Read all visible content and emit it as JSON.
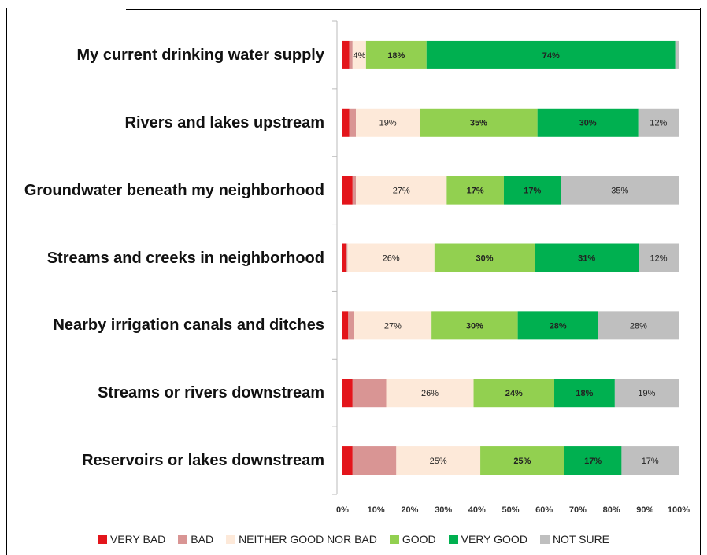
{
  "chart_data": {
    "type": "stacked-bar-100",
    "categories": [
      "My current drinking water supply",
      "Rivers and lakes upstream",
      "Groundwater beneath my neighborhood",
      "Streams and creeks in neighborhood",
      "Nearby irrigation canals and ditches",
      "Streams or rivers downstream",
      "Reservoirs or lakes downstream"
    ],
    "series": [
      {
        "name": "VERY BAD",
        "color": "#e3151b",
        "values": [
          2,
          2,
          3,
          1,
          2,
          3,
          3
        ],
        "value_labels": [
          null,
          null,
          null,
          null,
          null,
          null,
          null
        ]
      },
      {
        "name": "BAD",
        "color": "#d99594",
        "values": [
          1,
          2,
          1,
          0.5,
          2,
          10,
          13
        ],
        "value_labels": [
          null,
          null,
          null,
          null,
          null,
          null,
          null
        ]
      },
      {
        "name": "NEITHER GOOD NOR BAD",
        "color": "#fde9d9",
        "values": [
          4,
          19,
          27,
          26,
          27,
          26,
          25
        ],
        "value_labels": [
          "4%",
          "19%",
          "27%",
          "26%",
          "27%",
          "26%",
          "25%"
        ]
      },
      {
        "name": "GOOD",
        "color": "#92d050",
        "values": [
          18,
          35,
          17,
          30,
          30,
          24,
          25
        ],
        "value_labels": [
          "18%",
          "35%",
          "17%",
          "30%",
          "30%",
          "24%",
          "25%"
        ]
      },
      {
        "name": "VERY GOOD",
        "color": "#00b050",
        "values": [
          74,
          30,
          17,
          31,
          28,
          18,
          17
        ],
        "value_labels": [
          "74%",
          "30%",
          "17%",
          "31%",
          "28%",
          "18%",
          "17%"
        ]
      },
      {
        "name": "NOT SURE",
        "color": "#bfbfbf",
        "values": [
          1,
          12,
          35,
          12,
          28,
          19,
          17
        ],
        "value_labels": [
          null,
          "12%",
          "35%",
          "12%",
          "28%",
          "19%",
          "17%"
        ]
      }
    ],
    "xlim": [
      0,
      100
    ],
    "xticks": [
      {
        "value": 0,
        "label": "0%"
      },
      {
        "value": 10,
        "label": "10%"
      },
      {
        "value": 20,
        "label": "20%"
      },
      {
        "value": 30,
        "label": "30%"
      },
      {
        "value": 40,
        "label": "40%"
      },
      {
        "value": 50,
        "label": "50%"
      },
      {
        "value": 60,
        "label": "60%"
      },
      {
        "value": 70,
        "label": "70%"
      },
      {
        "value": 80,
        "label": "80%"
      },
      {
        "value": 90,
        "label": "90%"
      },
      {
        "value": 100,
        "label": "100%"
      }
    ],
    "legend": "bottom"
  }
}
